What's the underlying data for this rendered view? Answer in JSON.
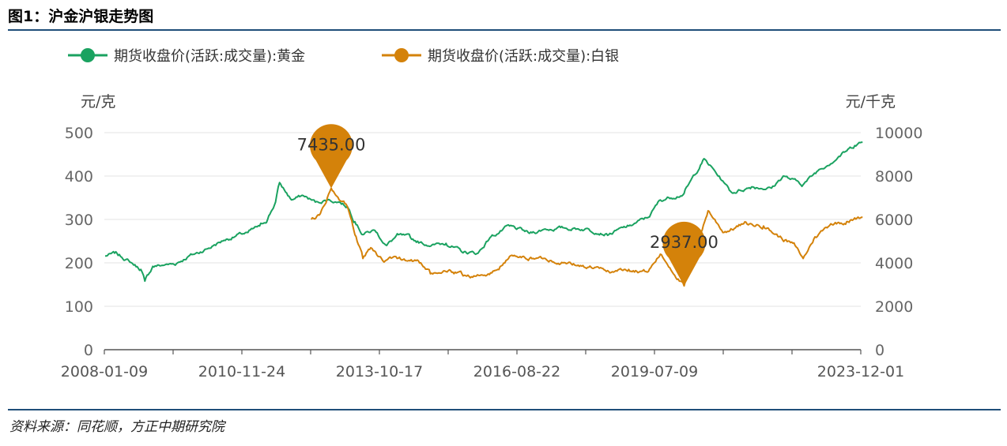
{
  "figure": {
    "title": "图1：沪金沪银走势图",
    "source": "资料来源：同花顺，方正中期研究院"
  },
  "chart_data": {
    "type": "line",
    "legend": {
      "position": "top-left"
    },
    "grid": true,
    "x_axis": {
      "tick_labels": [
        "2008-01-09",
        "2010-11-24",
        "2013-10-17",
        "2016-08-22",
        "2019-07-09",
        "2023-12-01"
      ],
      "range": [
        "2008-01-09",
        "2023-12-01"
      ]
    },
    "y_axis_left": {
      "unit": "元/克",
      "range": [
        0,
        500
      ],
      "ticks": [
        "0",
        "100",
        "200",
        "300",
        "400",
        "500"
      ]
    },
    "y_axis_right": {
      "unit": "元/千克",
      "range": [
        0,
        10000
      ],
      "ticks": [
        "0",
        "2000",
        "4000",
        "6000",
        "8000",
        "10000"
      ]
    },
    "series": [
      {
        "name": "期货收盘价(活跃:成交量):黄金",
        "axis": "left",
        "color": "#1aa260",
        "points": [
          [
            "2008-01",
            216
          ],
          [
            "2008-04",
            222
          ],
          [
            "2008-07",
            205
          ],
          [
            "2008-10",
            185
          ],
          [
            "2008-11",
            158
          ],
          [
            "2009-01",
            192
          ],
          [
            "2009-04",
            195
          ],
          [
            "2009-07",
            198
          ],
          [
            "2009-10",
            215
          ],
          [
            "2010-01",
            225
          ],
          [
            "2010-04",
            238
          ],
          [
            "2010-07",
            252
          ],
          [
            "2010-10",
            262
          ],
          [
            "2011-01",
            270
          ],
          [
            "2011-04",
            285
          ],
          [
            "2011-06",
            300
          ],
          [
            "2011-08",
            340
          ],
          [
            "2011-09",
            385
          ],
          [
            "2011-12",
            345
          ],
          [
            "2012-03",
            355
          ],
          [
            "2012-06",
            340
          ],
          [
            "2012-09",
            345
          ],
          [
            "2012-12",
            340
          ],
          [
            "2013-02",
            330
          ],
          [
            "2013-04",
            295
          ],
          [
            "2013-06",
            265
          ],
          [
            "2013-09",
            275
          ],
          [
            "2013-12",
            240
          ],
          [
            "2014-03",
            265
          ],
          [
            "2014-06",
            258
          ],
          [
            "2014-09",
            245
          ],
          [
            "2014-12",
            242
          ],
          [
            "2015-03",
            245
          ],
          [
            "2015-07",
            225
          ],
          [
            "2015-11",
            222
          ],
          [
            "2016-02",
            258
          ],
          [
            "2016-07",
            285
          ],
          [
            "2016-12",
            268
          ],
          [
            "2017-04",
            278
          ],
          [
            "2017-09",
            280
          ],
          [
            "2018-03",
            278
          ],
          [
            "2018-08",
            265
          ],
          [
            "2019-01",
            285
          ],
          [
            "2019-06",
            305
          ],
          [
            "2019-09",
            345
          ],
          [
            "2020-03",
            360
          ],
          [
            "2020-08",
            440
          ],
          [
            "2021-01",
            385
          ],
          [
            "2021-03",
            362
          ],
          [
            "2021-08",
            375
          ],
          [
            "2022-01",
            372
          ],
          [
            "2022-04",
            400
          ],
          [
            "2022-09",
            380
          ],
          [
            "2023-01",
            415
          ],
          [
            "2023-06",
            445
          ],
          [
            "2023-10",
            470
          ],
          [
            "2023-12",
            478
          ]
        ]
      },
      {
        "name": "期货收盘价(活跃:成交量):白银",
        "axis": "right",
        "color": "#d4820a",
        "points": [
          [
            "2012-05",
            6000
          ],
          [
            "2012-07",
            6200
          ],
          [
            "2012-09",
            7000
          ],
          [
            "2012-10",
            7435
          ],
          [
            "2012-12",
            6900
          ],
          [
            "2013-02",
            6600
          ],
          [
            "2013-04",
            5300
          ],
          [
            "2013-06",
            4200
          ],
          [
            "2013-08",
            4700
          ],
          [
            "2013-11",
            4100
          ],
          [
            "2014-02",
            4300
          ],
          [
            "2014-05",
            4100
          ],
          [
            "2014-08",
            4100
          ],
          [
            "2014-11",
            3500
          ],
          [
            "2015-03",
            3600
          ],
          [
            "2015-07",
            3500
          ],
          [
            "2015-10",
            3400
          ],
          [
            "2016-01",
            3400
          ],
          [
            "2016-04",
            3700
          ],
          [
            "2016-07",
            4300
          ],
          [
            "2016-12",
            4200
          ],
          [
            "2017-04",
            4200
          ],
          [
            "2017-09",
            4000
          ],
          [
            "2018-03",
            3800
          ],
          [
            "2018-08",
            3600
          ],
          [
            "2019-01",
            3700
          ],
          [
            "2019-06",
            3600
          ],
          [
            "2019-09",
            4400
          ],
          [
            "2020-03",
            2937
          ],
          [
            "2020-07",
            5200
          ],
          [
            "2020-09",
            6400
          ],
          [
            "2021-01",
            5400
          ],
          [
            "2021-06",
            5800
          ],
          [
            "2021-11",
            5700
          ],
          [
            "2022-03",
            5200
          ],
          [
            "2022-07",
            4800
          ],
          [
            "2022-09",
            4200
          ],
          [
            "2022-12",
            5200
          ],
          [
            "2023-04",
            5800
          ],
          [
            "2023-08",
            5900
          ],
          [
            "2023-12",
            6100
          ]
        ]
      }
    ],
    "annotations": [
      {
        "series": 1,
        "label": "7435.00",
        "date": "2012-10",
        "value": 7435,
        "type": "max"
      },
      {
        "series": 1,
        "label": "2937.00",
        "date": "2020-03",
        "value": 2937,
        "type": "min"
      }
    ]
  }
}
